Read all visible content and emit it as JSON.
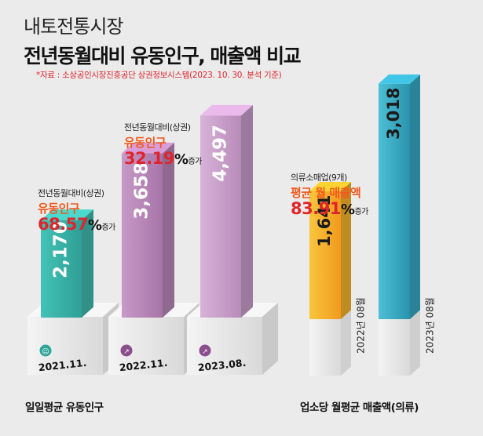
{
  "header": {
    "subtitle": "내토전통시장",
    "title": "전년동월대비 유동인구, 매출액 비교",
    "source": "*자료 : 소상공인시장진흥공단 상권정보시스템(2023. 10. 30. 분석 기준)"
  },
  "chart_data": [
    {
      "type": "bar",
      "caption": "일일평균 유동인구",
      "categories": [
        "2021.11.",
        "2022.11.",
        "2023.08."
      ],
      "values": [
        2170,
        3658,
        4497
      ],
      "value_labels": [
        "2,170",
        "3,658",
        "4,497"
      ],
      "annotations": [
        {
          "label": "전년동월대비(상권)",
          "metric": "유동인구",
          "value": "68.57",
          "unit": "%",
          "change": "증가"
        },
        {
          "label": "전년동월대비(상권)",
          "metric": "유동인구",
          "value": "32.19",
          "unit": "%",
          "change": "증가"
        }
      ],
      "colors": [
        "#3fb8ad",
        "#b886b8",
        "#c79ec9"
      ]
    },
    {
      "type": "bar",
      "caption": "업소당 월평균 매출액(의류)",
      "categories": [
        "2022년 08월",
        "2023년 08월"
      ],
      "values": [
        1641,
        3018
      ],
      "value_labels": [
        "1,641",
        "3,018"
      ],
      "annotations": [
        {
          "label": "의류소매업(9개)",
          "metric": "평균 월 매출액",
          "value": "83.91",
          "unit": "%",
          "change": "증가"
        }
      ],
      "colors": [
        "#f4b42a",
        "#36a9c4"
      ]
    }
  ]
}
